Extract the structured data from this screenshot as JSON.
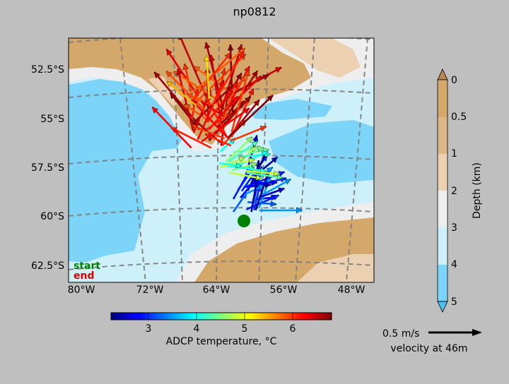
{
  "title": "np0812",
  "chart_data": {
    "type": "quiver-map",
    "map": {
      "lat_ticks": [
        "52.5°S",
        "55°S",
        "57.5°S",
        "60°S",
        "62.5°S"
      ],
      "lat_values": [
        -52.5,
        -55,
        -57.5,
        -60,
        -62.5
      ],
      "lon_ticks": [
        "80°W",
        "72°W",
        "64°W",
        "56°W",
        "48°W"
      ],
      "lon_values": [
        -80,
        -72,
        -64,
        -56,
        -48
      ],
      "lat_range": [
        -63.3,
        -51.0
      ],
      "lon_range": [
        -81.5,
        -45.5
      ],
      "track_labels": {
        "start": "start",
        "end": "end"
      },
      "track_label_colors": {
        "start": "#008000",
        "end": "#dd0000"
      },
      "start_marker_color": "#008000"
    },
    "depth_colorbar": {
      "label": "Depth (km)",
      "ticks": [
        "0",
        "0.5",
        "1",
        "2",
        "3",
        "4",
        "5"
      ],
      "colors": [
        "#d4a86a",
        "#dcb888",
        "#ecd0b2",
        "#eeeeee",
        "#cdf0fb",
        "#7cd5f8"
      ]
    },
    "temperature_colorbar": {
      "label": "ADCP temperature, °C",
      "ticks": [
        "3",
        "4",
        "5",
        "6"
      ],
      "tick_values": [
        3,
        4,
        5,
        6
      ],
      "range": [
        2.2,
        6.8
      ],
      "colormap": "jet"
    },
    "velocity_key": {
      "label": "0.5 m/s",
      "sublabel": "velocity at 46m",
      "speed": 0.5,
      "unit": "m/s"
    }
  }
}
